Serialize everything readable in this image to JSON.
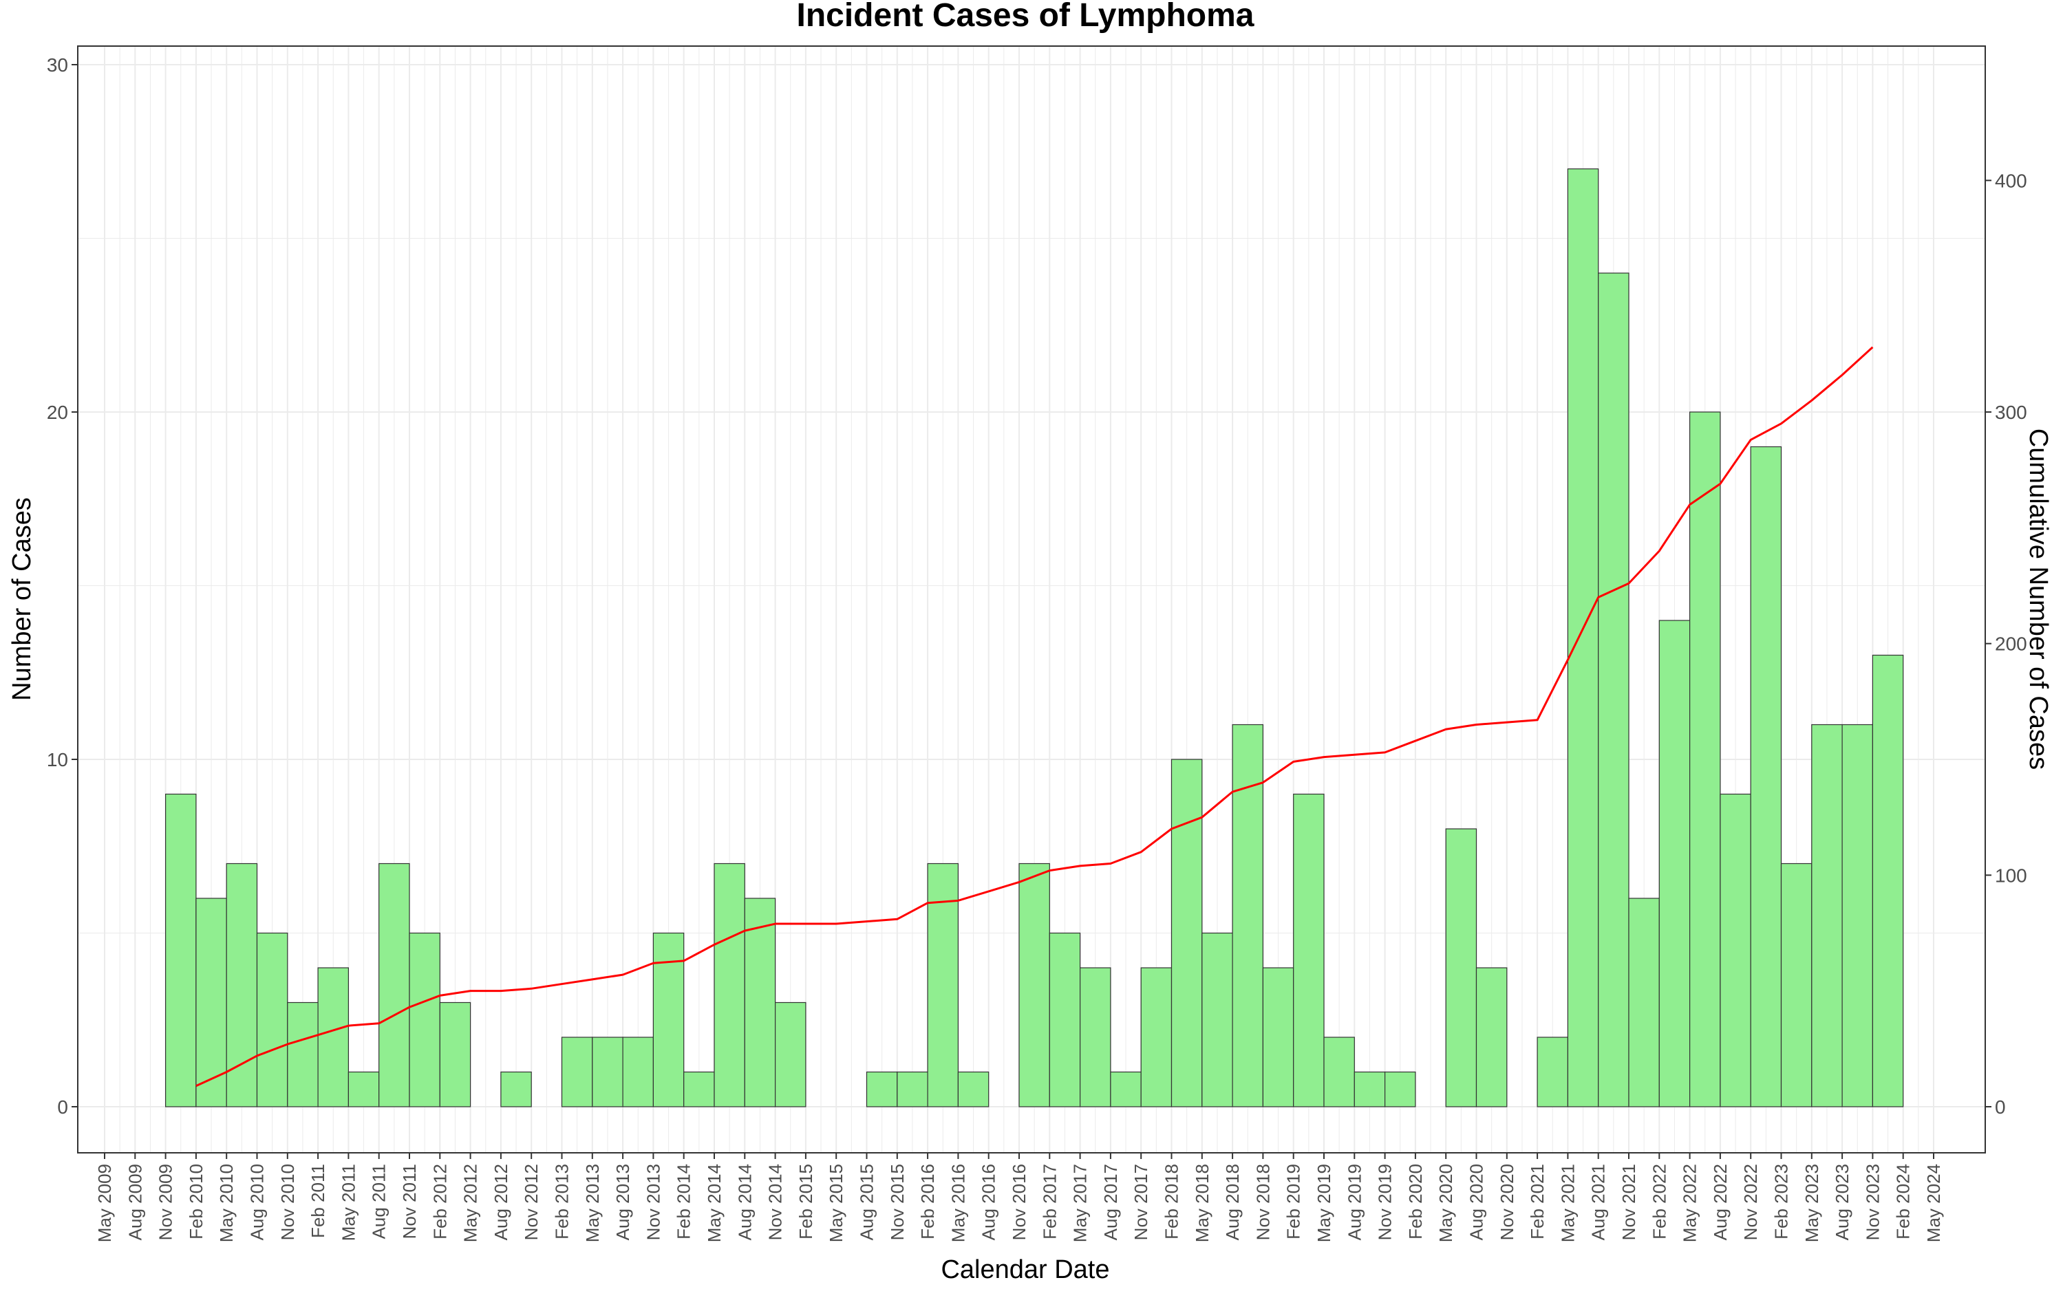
{
  "chart_data": {
    "type": "bar",
    "title": "Incident Cases of Lymphoma",
    "xlabel": "Calendar Date",
    "ylabel": "Number of Cases",
    "y2label": "Cumulative Number of Cases",
    "ylim": [
      0,
      30
    ],
    "y2lim": [
      0,
      450
    ],
    "yticks": [
      0,
      10,
      20,
      30
    ],
    "y2ticks": [
      0,
      100,
      200,
      300,
      400
    ],
    "x_tick_labels": [
      "May 2009",
      "Aug 2009",
      "Nov 2009",
      "Feb 2010",
      "May 2010",
      "Aug 2010",
      "Nov 2010",
      "Feb 2011",
      "May 2011",
      "Aug 2011",
      "Nov 2011",
      "Feb 2012",
      "May 2012",
      "Aug 2012",
      "Nov 2012",
      "Feb 2013",
      "May 2013",
      "Aug 2013",
      "Nov 2013",
      "Feb 2014",
      "May 2014",
      "Aug 2014",
      "Nov 2014",
      "Feb 2015",
      "May 2015",
      "Aug 2015",
      "Nov 2015",
      "Feb 2016",
      "May 2016",
      "Aug 2016",
      "Nov 2016",
      "Feb 2017",
      "May 2017",
      "Aug 2017",
      "Nov 2017",
      "Feb 2018",
      "May 2018",
      "Aug 2018",
      "Nov 2018",
      "Feb 2019",
      "May 2019",
      "Aug 2019",
      "Nov 2019",
      "Feb 2020",
      "May 2020",
      "Aug 2020",
      "Nov 2020",
      "Feb 2021",
      "May 2021",
      "Aug 2021",
      "Nov 2021",
      "Feb 2022",
      "May 2022",
      "Aug 2022",
      "Nov 2022",
      "Feb 2023",
      "May 2023",
      "Aug 2023",
      "Nov 2023",
      "Feb 2024",
      "May 2024"
    ],
    "series": [
      {
        "type": "bar",
        "color": "#90EE90",
        "x": [
          "Nov 2009",
          "Feb 2010",
          "May 2010",
          "Aug 2010",
          "Nov 2010",
          "Feb 2011",
          "May 2011",
          "Aug 2011",
          "Nov 2011",
          "Feb 2012",
          "May 2012",
          "Aug 2012",
          "Nov 2012",
          "Feb 2013",
          "May 2013",
          "Aug 2013",
          "Nov 2013",
          "Feb 2014",
          "May 2014",
          "Aug 2014",
          "Nov 2014",
          "Feb 2015",
          "May 2015",
          "Aug 2015",
          "Nov 2015",
          "Feb 2016",
          "May 2016",
          "Aug 2016",
          "Nov 2016",
          "Feb 2017",
          "May 2017",
          "Aug 2017",
          "Nov 2017",
          "Feb 2018",
          "May 2018",
          "Aug 2018",
          "Nov 2018",
          "Feb 2019",
          "May 2019",
          "Aug 2019",
          "Nov 2019",
          "Feb 2020",
          "May 2020",
          "Aug 2020",
          "Nov 2020",
          "Feb 2021",
          "May 2021",
          "Aug 2021",
          "Nov 2021",
          "Feb 2022",
          "May 2022",
          "Aug 2022",
          "Nov 2022",
          "Feb 2023",
          "May 2023",
          "Aug 2023",
          "Nov 2023"
        ],
        "values": [
          9,
          6,
          7,
          5,
          3,
          4,
          1,
          7,
          5,
          3,
          0,
          1,
          0,
          2,
          2,
          2,
          5,
          1,
          7,
          6,
          3,
          0,
          0,
          1,
          1,
          7,
          1,
          0,
          7,
          5,
          4,
          1,
          4,
          10,
          5,
          11,
          4,
          9,
          2,
          1,
          1,
          0,
          8,
          4,
          0,
          2,
          27,
          24,
          6,
          14,
          20,
          9,
          19,
          7,
          11,
          11,
          13
        ]
      },
      {
        "type": "line",
        "axis": "right",
        "color": "#FF0000",
        "x": [
          "Feb 2010",
          "May 2010",
          "Aug 2010",
          "Nov 2010",
          "Feb 2011",
          "May 2011",
          "Aug 2011",
          "Nov 2011",
          "Feb 2012",
          "May 2012",
          "Aug 2012",
          "Nov 2012",
          "Feb 2013",
          "May 2013",
          "Aug 2013",
          "Nov 2013",
          "Feb 2014",
          "May 2014",
          "Aug 2014",
          "Nov 2014",
          "Feb 2015",
          "May 2015",
          "Aug 2015",
          "Nov 2015",
          "Feb 2016",
          "May 2016",
          "Aug 2016",
          "Nov 2016",
          "Feb 2017",
          "May 2017",
          "Aug 2017",
          "Nov 2017",
          "Feb 2018",
          "May 2018",
          "Aug 2018",
          "Nov 2018",
          "Feb 2019",
          "May 2019",
          "Aug 2019",
          "Nov 2019",
          "Feb 2020",
          "May 2020",
          "Aug 2020",
          "Nov 2020",
          "Feb 2021",
          "May 2021",
          "Aug 2021",
          "Nov 2021",
          "Feb 2022",
          "May 2022",
          "Aug 2022",
          "Nov 2022",
          "Feb 2023",
          "May 2023",
          "Aug 2023",
          "Nov 2023"
        ],
        "values": [
          9,
          15,
          22,
          27,
          31,
          35,
          36,
          43,
          48,
          50,
          50,
          51,
          53,
          55,
          57,
          62,
          63,
          70,
          76,
          79,
          79,
          79,
          80,
          81,
          88,
          89,
          93,
          97,
          102,
          104,
          105,
          110,
          120,
          125,
          136,
          140,
          149,
          151,
          152,
          153,
          158,
          163,
          165,
          166,
          167,
          193,
          220,
          226,
          240,
          260,
          269,
          288,
          295,
          305,
          316,
          328
        ]
      }
    ],
    "colors": {
      "bar_fill": "#90EE90",
      "bar_stroke": "#333333",
      "line": "#FF0000",
      "grid": "#EBEBEB",
      "panel_border": "#333333",
      "tick_text": "#4d4d4d"
    },
    "grid": true,
    "legend": "none"
  }
}
